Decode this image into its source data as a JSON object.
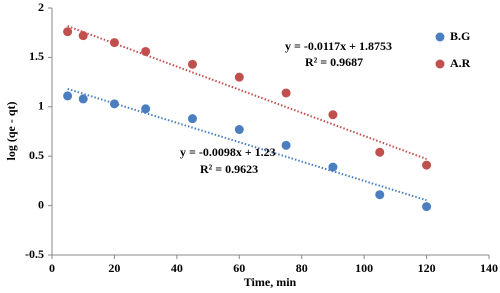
{
  "chart_data": {
    "type": "scatter",
    "x_label": "Time, min",
    "y_label": "log (qe - qt)",
    "x": [
      5,
      10,
      20,
      30,
      45,
      60,
      75,
      90,
      105,
      120
    ],
    "series": [
      {
        "name": "B.G",
        "color": "#4a7ebf",
        "values": [
          1.11,
          1.08,
          1.03,
          0.98,
          0.88,
          0.77,
          0.61,
          0.39,
          0.11,
          -0.01
        ],
        "trendline": {
          "slope": -0.0098,
          "intercept": 1.23,
          "label": "y = -0.0098x + 1.23",
          "r2_label": "R² = 0.9623"
        }
      },
      {
        "name": "A.R",
        "color": "#c0504d",
        "values": [
          1.76,
          1.72,
          1.65,
          1.56,
          1.43,
          1.3,
          1.14,
          0.92,
          0.54,
          0.41
        ],
        "trendline": {
          "slope": -0.0117,
          "intercept": 1.8753,
          "label": "y = -0.0117x + 1.8753",
          "r2_label": "R² = 0.9687"
        }
      }
    ],
    "xlim": [
      0,
      140
    ],
    "xticks": [
      0,
      20,
      40,
      60,
      80,
      100,
      120,
      140
    ],
    "ylim": [
      -0.5,
      2
    ],
    "yticks": [
      -0.5,
      0,
      0.5,
      1,
      1.5,
      2
    ],
    "grid": false,
    "legend": "top-right"
  }
}
